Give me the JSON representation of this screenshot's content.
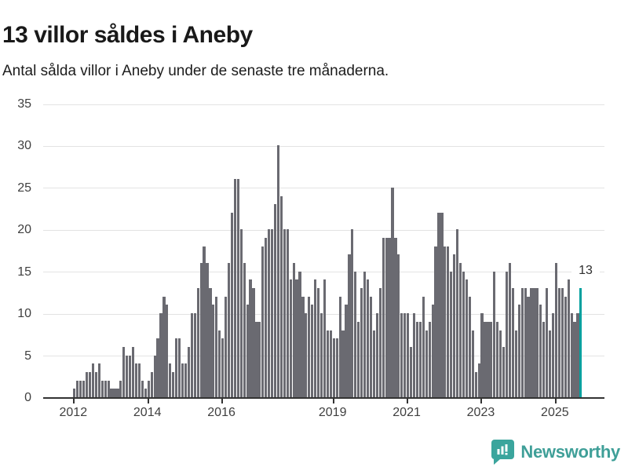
{
  "header": {
    "title": "13 villor såldes i Aneby",
    "subtitle": "Antal sålda villor i Aneby under de senaste tre månaderna."
  },
  "chart_data": {
    "type": "bar",
    "title": "13 villor såldes i Aneby",
    "subtitle": "Antal sålda villor i Aneby under de senaste tre månaderna.",
    "unit": "villor (rullande 3 månader)",
    "x_start_month": "2012-01",
    "x_end_month": "2025-09",
    "values": [
      1,
      2,
      2,
      2,
      3,
      3,
      4,
      3,
      4,
      2,
      2,
      2,
      1,
      1,
      1,
      2,
      6,
      5,
      5,
      6,
      4,
      4,
      2,
      1,
      2,
      3,
      5,
      7,
      10,
      12,
      11,
      4,
      3,
      7,
      7,
      4,
      4,
      6,
      10,
      10,
      13,
      16,
      18,
      16,
      13,
      11,
      12,
      8,
      7,
      12,
      16,
      22,
      26,
      26,
      20,
      16,
      11,
      14,
      13,
      9,
      9,
      18,
      19,
      20,
      20,
      23,
      30,
      24,
      20,
      20,
      14,
      16,
      14,
      15,
      12,
      10,
      12,
      11,
      14,
      13,
      10,
      14,
      8,
      8,
      7,
      7,
      12,
      8,
      11,
      17,
      20,
      15,
      9,
      13,
      15,
      14,
      12,
      8,
      10,
      13,
      19,
      19,
      19,
      25,
      19,
      17,
      10,
      10,
      10,
      6,
      10,
      9,
      9,
      12,
      8,
      9,
      11,
      18,
      22,
      22,
      18,
      18,
      15,
      17,
      20,
      16,
      15,
      14,
      12,
      8,
      3,
      4,
      10,
      9,
      9,
      9,
      15,
      9,
      8,
      6,
      15,
      16,
      13,
      8,
      11,
      13,
      13,
      12,
      13,
      13,
      13,
      11,
      9,
      13,
      8,
      10,
      16,
      13,
      13,
      12,
      14,
      10,
      9,
      10,
      13
    ],
    "highlight_last_bar": true,
    "last_value": 13,
    "annotation": "13",
    "ylim": [
      0,
      35
    ],
    "yticks": [
      0,
      5,
      10,
      15,
      20,
      25,
      30,
      35
    ],
    "xticks": [
      {
        "label": "2012",
        "month": 0
      },
      {
        "label": "2014",
        "month": 24
      },
      {
        "label": "2016",
        "month": 48
      },
      {
        "label": "2019",
        "month": 84
      },
      {
        "label": "2021",
        "month": 108
      },
      {
        "label": "2023",
        "month": 132
      },
      {
        "label": "2025",
        "month": 156
      }
    ],
    "grid": true,
    "legend": "none",
    "bar_color": "#6a6a71",
    "highlight_color": "#00a09e",
    "gridline_color": "#e3e3e3",
    "axis_color": "#333333"
  },
  "footer": {
    "brand": "Newsworthy",
    "brand_color": "#3f9f98",
    "icon_color": "#3ba59d"
  }
}
